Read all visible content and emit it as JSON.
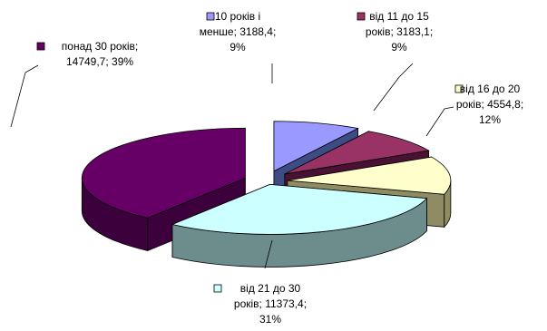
{
  "chart_data": {
    "type": "pie",
    "title": "",
    "slices": [
      {
        "label_lines": [
          "10 років і",
          "менше; 3188,4;",
          "9%"
        ],
        "value": 3188.4,
        "percent": 9,
        "color": "#9999ff",
        "side_color": "#3e4c86"
      },
      {
        "label_lines": [
          "від 11 до 15",
          "років; 3183,1;",
          "9%"
        ],
        "value": 3183.1,
        "percent": 9,
        "color": "#993366",
        "side_color": "#4a1232"
      },
      {
        "label_lines": [
          "від 16 до 20",
          "років; 4554,8;",
          "12%"
        ],
        "value": 4554.8,
        "percent": 12,
        "color": "#ffffcc",
        "side_color": "#8f8b62"
      },
      {
        "label_lines": [
          "від 21 до 30",
          "років; 11373,4;",
          "31%"
        ],
        "value": 11373.4,
        "percent": 31,
        "color": "#ccffff",
        "side_color": "#6d8d8d"
      },
      {
        "label_lines": [
          "понад 30 років;",
          "14749,7; 39%"
        ],
        "value": 14749.7,
        "percent": 39,
        "color": "#660066",
        "side_color": "#3c003c"
      }
    ],
    "legend": "inline-labels",
    "grid": false,
    "exploded": true,
    "three_d": true
  }
}
